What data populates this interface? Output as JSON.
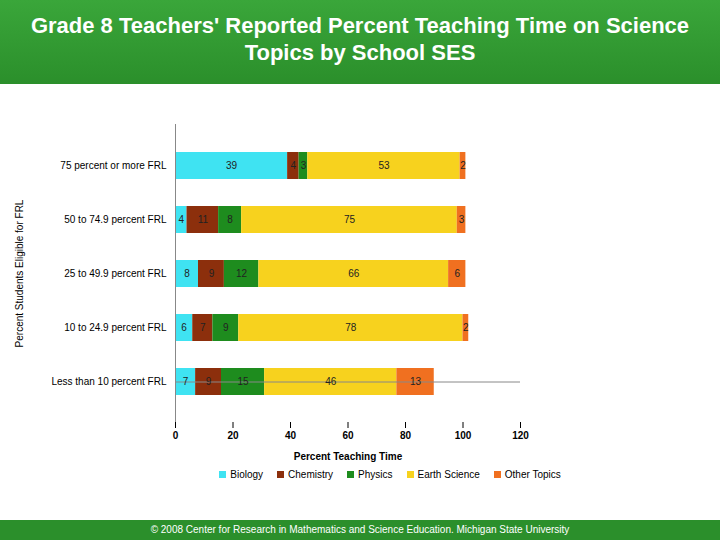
{
  "chart_data": {
    "type": "bar",
    "orientation": "horizontal",
    "stacked": true,
    "data_labels": true,
    "grid": false,
    "legend": "bottom",
    "title": "Grade 8 Teachers' Reported Percent Teaching Time on Science Topics by School SES",
    "caption": "© 2008 Center for Research in Mathematics and Science Education.    Michigan State University",
    "x_label": "Percent Teaching Time",
    "y_label": "Percent Students Eligible for FRL",
    "categories": [
      "75 percent or more FRL",
      "50 to 74.9 percent FRL",
      "25 to 49.9 percent FRL",
      "10 to 24.9 percent FRL",
      "Less than 10 percent FRL"
    ],
    "series": [
      {
        "name": "Biology",
        "color": "#3fe3f2",
        "values": [
          39,
          4,
          8,
          6,
          7
        ]
      },
      {
        "name": "Chemistry",
        "color": "#8c2f0c",
        "values": [
          4,
          11,
          9,
          7,
          9
        ]
      },
      {
        "name": "Physics",
        "color": "#1e8c1e",
        "values": [
          3,
          8,
          12,
          9,
          15
        ]
      },
      {
        "name": "Earth Science",
        "color": "#f7d21e",
        "values": [
          53,
          75,
          66,
          78,
          46
        ]
      },
      {
        "name": "Other Topics",
        "color": "#f07020",
        "values": [
          2,
          3,
          6,
          2,
          13
        ]
      }
    ],
    "xlim": [
      0,
      120
    ],
    "xticks": [
      0,
      20,
      40,
      60,
      80,
      100,
      120
    ]
  }
}
